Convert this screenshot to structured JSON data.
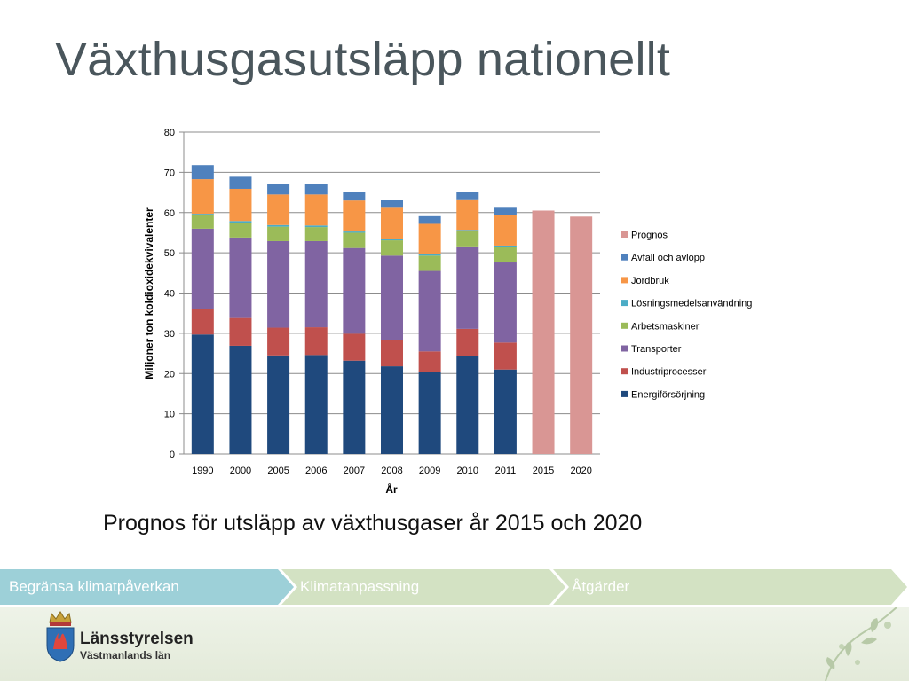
{
  "title": "Växthusgasutsläpp nationellt",
  "caption": "Prognos för utsläpp av växthusgaser år 2015 och 2020",
  "nav": {
    "items": [
      {
        "label": "Begränsa klimatpåverkan",
        "active": true
      },
      {
        "label": "Klimatanpassning",
        "active": false
      },
      {
        "label": "Åtgärder",
        "active": false
      }
    ]
  },
  "footer": {
    "logo_name": "Länsstyrelsen",
    "logo_sub": "Västmanlands län",
    "logo_icon": "crown-shield-icon",
    "decor_icon": "leaf-branch-icon"
  },
  "colors": {
    "title": "#4a565c",
    "nav_active": "#9dd0d8",
    "nav_inactive": "#d3e2c3"
  },
  "chart_data": {
    "type": "bar",
    "stacked": true,
    "categories": [
      "1990",
      "2000",
      "2005",
      "2006",
      "2007",
      "2008",
      "2009",
      "2010",
      "2011",
      "2015",
      "2020"
    ],
    "xlabel": "År",
    "ylabel": "Miljoner ton koldioxidekvivalenter",
    "ylim": [
      0,
      80
    ],
    "yticks": [
      0,
      10,
      20,
      30,
      40,
      50,
      60,
      70,
      80
    ],
    "grid": true,
    "legend_position": "right",
    "series": [
      {
        "name": "Energiförsörjning",
        "color": "#1f497d",
        "values": [
          29.7,
          26.9,
          24.5,
          24.6,
          23.2,
          21.8,
          20.4,
          24.4,
          21.0,
          null,
          null
        ]
      },
      {
        "name": "Industriprocesser",
        "color": "#c0504d",
        "values": [
          6.3,
          6.9,
          6.9,
          6.9,
          6.7,
          6.6,
          5.1,
          6.7,
          6.7,
          null,
          null
        ]
      },
      {
        "name": "Transporter",
        "color": "#8064a2",
        "values": [
          20.0,
          20.0,
          21.5,
          21.4,
          21.3,
          20.9,
          20.0,
          20.5,
          19.9,
          null,
          null
        ]
      },
      {
        "name": "Arbetsmaskiner",
        "color": "#9bbb59",
        "values": [
          3.3,
          3.7,
          3.6,
          3.5,
          3.8,
          3.8,
          3.8,
          3.8,
          3.9,
          null,
          null
        ]
      },
      {
        "name": "Lösningsmedelsanvändning",
        "color": "#4bacc6",
        "values": [
          0.4,
          0.4,
          0.4,
          0.4,
          0.3,
          0.3,
          0.3,
          0.3,
          0.3,
          null,
          null
        ]
      },
      {
        "name": "Jordbruk",
        "color": "#f79646",
        "values": [
          8.6,
          8.0,
          7.6,
          7.7,
          7.7,
          7.8,
          7.6,
          7.6,
          7.6,
          null,
          null
        ]
      },
      {
        "name": "Avfall och avlopp",
        "color": "#4f81bd",
        "values": [
          3.5,
          3.0,
          2.6,
          2.5,
          2.1,
          2.0,
          1.9,
          1.9,
          1.8,
          null,
          null
        ]
      },
      {
        "name": "Prognos",
        "color": "#d99694",
        "values": [
          null,
          null,
          null,
          null,
          null,
          null,
          null,
          null,
          null,
          60.5,
          59.0
        ]
      }
    ],
    "legend_order": [
      "Prognos",
      "Avfall och avlopp",
      "Jordbruk",
      "Lösningsmedelsanvändning",
      "Arbetsmaskiner",
      "Transporter",
      "Industriprocesser",
      "Energiförsörjning"
    ]
  }
}
